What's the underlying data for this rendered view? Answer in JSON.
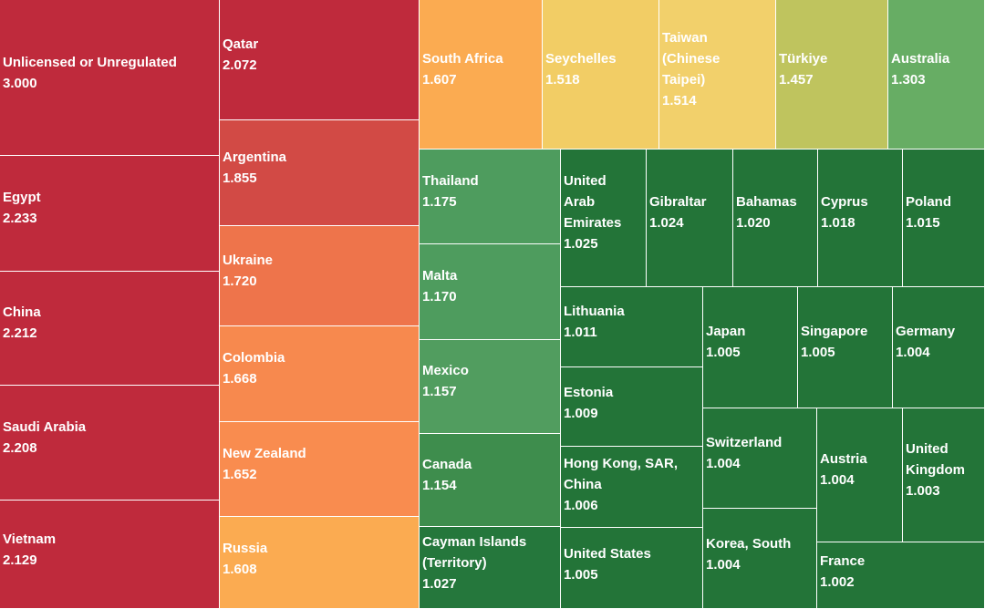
{
  "chart_data": {
    "type": "treemap",
    "title": "",
    "items": [
      {
        "name": "Unlicensed or Unregulated",
        "value": "3.000",
        "color": "#bf2a3c"
      },
      {
        "name": "Egypt",
        "value": "2.233",
        "color": "#bf2a3c"
      },
      {
        "name": "China",
        "value": "2.212",
        "color": "#bf2a3c"
      },
      {
        "name": "Saudi Arabia",
        "value": "2.208",
        "color": "#bf2a3c"
      },
      {
        "name": "Vietnam",
        "value": "2.129",
        "color": "#bf2a3c"
      },
      {
        "name": "Qatar",
        "value": "2.072",
        "color": "#bf2a3c"
      },
      {
        "name": "Argentina",
        "value": "1.855",
        "color": "#d24a45"
      },
      {
        "name": "Ukraine",
        "value": "1.720",
        "color": "#ee744b"
      },
      {
        "name": "Colombia",
        "value": "1.668",
        "color": "#f7894e"
      },
      {
        "name": "New Zealand",
        "value": "1.652",
        "color": "#f98c4f"
      },
      {
        "name": "Russia",
        "value": "1.608",
        "color": "#fbab51"
      },
      {
        "name": "South Africa",
        "value": "1.607",
        "color": "#fbab51"
      },
      {
        "name": "Seychelles",
        "value": "1.518",
        "color": "#f2cd65"
      },
      {
        "name": "Taiwan (Chinese Taipei)",
        "value": "1.514",
        "color": "#f2d06b"
      },
      {
        "name": "Türkiye",
        "value": "1.457",
        "color": "#bfc45e"
      },
      {
        "name": "Australia",
        "value": "1.303",
        "color": "#67ad64"
      },
      {
        "name": "Thailand",
        "value": "1.175",
        "color": "#4e9c5e"
      },
      {
        "name": "Malta",
        "value": "1.170",
        "color": "#4e9c5e"
      },
      {
        "name": "Mexico",
        "value": "1.157",
        "color": "#519d5f"
      },
      {
        "name": "Canada",
        "value": "1.154",
        "color": "#3e8d4d"
      },
      {
        "name": "Cayman Islands (Territory)",
        "value": "1.027",
        "color": "#25773c"
      },
      {
        "name": "United Arab Emirates",
        "value": "1.025",
        "color": "#237438"
      },
      {
        "name": "Gibraltar",
        "value": "1.024",
        "color": "#237438"
      },
      {
        "name": "Bahamas",
        "value": "1.020",
        "color": "#237438"
      },
      {
        "name": "Cyprus",
        "value": "1.018",
        "color": "#237438"
      },
      {
        "name": "Poland",
        "value": "1.015",
        "color": "#237438"
      },
      {
        "name": "Lithuania",
        "value": "1.011",
        "color": "#237438"
      },
      {
        "name": "Estonia",
        "value": "1.009",
        "color": "#237438"
      },
      {
        "name": "Hong Kong, SAR, China",
        "value": "1.006",
        "color": "#237438"
      },
      {
        "name": "United States",
        "value": "1.005",
        "color": "#237438"
      },
      {
        "name": "Japan",
        "value": "1.005",
        "color": "#237438"
      },
      {
        "name": "Singapore",
        "value": "1.005",
        "color": "#237438"
      },
      {
        "name": "Germany",
        "value": "1.004",
        "color": "#237438"
      },
      {
        "name": "Switzerland",
        "value": "1.004",
        "color": "#237438"
      },
      {
        "name": "Austria",
        "value": "1.004",
        "color": "#237438"
      },
      {
        "name": "United Kingdom",
        "value": "1.003",
        "color": "#237438"
      },
      {
        "name": "Korea, South",
        "value": "1.004",
        "color": "#237438"
      },
      {
        "name": "France",
        "value": "1.002",
        "color": "#237438"
      }
    ]
  }
}
